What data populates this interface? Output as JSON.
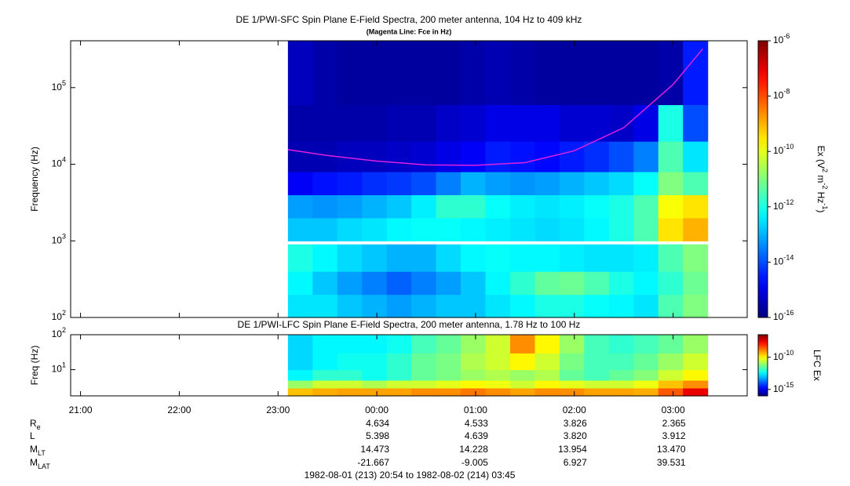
{
  "chart_data": [
    {
      "type": "heatmap",
      "title": "DE 1/PWI-SFC  Spin Plane E-Field Spectra, 200 meter antenna, 104 Hz to 409 kHz",
      "subtitle": "(Magenta Line: Fce in Hz)",
      "ylabel": "Frequency (Hz)",
      "log_y": true,
      "xlim": [
        20.9,
        27.75
      ],
      "ylim": [
        100,
        409000
      ],
      "yticks": [
        {
          "value": 100,
          "label": "10^2"
        },
        {
          "value": 1000,
          "label": "10^3"
        },
        {
          "value": 10000,
          "label": "10^4"
        },
        {
          "value": 100000,
          "label": "10^5"
        }
      ],
      "x_edges": [
        23.1,
        23.35,
        23.6,
        23.85,
        24.1,
        24.35,
        24.6,
        24.85,
        25.1,
        25.35,
        25.6,
        25.85,
        26.1,
        26.35,
        26.6,
        26.85,
        27.1,
        27.35
      ],
      "y_edges": [
        100,
        200,
        400,
        900,
        1000,
        2000,
        4000,
        8000,
        20000,
        60000,
        409000
      ],
      "z": [
        [
          3.2e-13,
          3.2e-13,
          1.6e-13,
          1e-13,
          6.3e-14,
          1e-13,
          1.6e-13,
          1.6e-13,
          3.2e-13,
          5e-13,
          1e-12,
          1e-12,
          6.3e-13,
          5e-13,
          3.2e-13,
          3.2e-12,
          1e-11
        ],
        [
          5e-13,
          1.6e-13,
          6.3e-14,
          3.2e-14,
          1.6e-14,
          3.2e-14,
          6.3e-14,
          1.6e-13,
          5e-13,
          1.6e-12,
          5e-12,
          6.3e-12,
          3.2e-12,
          1e-12,
          5e-13,
          1.6e-12,
          6.3e-12
        ],
        [
          1e-12,
          5e-13,
          2.5e-13,
          1.6e-13,
          1e-13,
          1e-13,
          2.5e-13,
          5e-13,
          6.3e-13,
          5e-13,
          5e-13,
          4e-13,
          3.2e-13,
          3.2e-13,
          4e-13,
          3.2e-12,
          1e-11
        ],
        [
          null,
          null,
          null,
          null,
          null,
          null,
          null,
          null,
          null,
          null,
          null,
          null,
          null,
          null,
          null,
          null,
          null
        ],
        [
          1.6e-13,
          1.6e-13,
          2.5e-13,
          3.2e-13,
          5e-13,
          6.3e-13,
          6.3e-13,
          5e-13,
          4e-13,
          3.2e-13,
          2.5e-13,
          3.2e-13,
          5e-13,
          1e-12,
          3.2e-12,
          3.2e-10,
          1e-09
        ],
        [
          6.3e-14,
          5e-14,
          6.3e-14,
          1e-13,
          1.6e-13,
          4e-13,
          1.6e-12,
          1.6e-12,
          6.3e-13,
          4e-13,
          3.2e-13,
          4e-13,
          6.3e-13,
          1e-12,
          3.2e-12,
          1.6e-10,
          3.2e-10
        ],
        [
          1.6e-15,
          2.5e-15,
          3.2e-15,
          5e-15,
          6.3e-15,
          1e-14,
          3.2e-14,
          1e-13,
          6.3e-14,
          5e-14,
          6.3e-14,
          1e-13,
          1.6e-13,
          2.5e-13,
          6.3e-13,
          1e-11,
          3.2e-12
        ],
        [
          3.2e-16,
          3.2e-16,
          4e-16,
          4e-16,
          5e-16,
          6.3e-16,
          1e-15,
          1.6e-15,
          3.2e-15,
          2.5e-15,
          2e-15,
          3.2e-15,
          5e-15,
          1e-14,
          3.2e-14,
          3.2e-12,
          3.2e-13
        ],
        [
          2.5e-16,
          2.5e-16,
          2.5e-16,
          2.5e-16,
          3.2e-16,
          3.2e-16,
          5e-16,
          6.3e-16,
          1e-15,
          1e-15,
          1e-15,
          6.3e-16,
          6.3e-16,
          5e-16,
          1e-15,
          1e-12,
          1e-14
        ],
        [
          4e-16,
          2.5e-16,
          2e-16,
          2e-16,
          2e-16,
          2e-16,
          2e-16,
          2.5e-16,
          3.2e-16,
          2.5e-16,
          2e-16,
          2e-16,
          2e-16,
          2e-16,
          2e-16,
          2.5e-16,
          3.2e-15
        ]
      ],
      "colorbar": {
        "label": "Ex (V^2 m^-2 Hz^-1)",
        "zlim": [
          1e-16,
          1e-06
        ],
        "ticks": [
          {
            "value": 1e-16,
            "label": "10^-16"
          },
          {
            "value": 1e-14,
            "label": "10^-14"
          },
          {
            "value": 1e-12,
            "label": "10^-12"
          },
          {
            "value": 1e-10,
            "label": "10^-10"
          },
          {
            "value": 1e-08,
            "label": "10^-8"
          },
          {
            "value": 1e-06,
            "label": "10^-6"
          }
        ]
      },
      "series": [
        {
          "color": "#e020e0",
          "x": [
            23.1,
            23.5,
            24,
            24.5,
            25,
            25.5,
            26,
            26.5,
            27,
            27.3
          ],
          "values": [
            15500,
            13000,
            11000,
            9800,
            9700,
            10500,
            15000,
            30000,
            110000,
            320000
          ]
        }
      ]
    },
    {
      "type": "heatmap",
      "title": "DE 1/PWI-LFC  Spin Plane E-Field Spectra, 200 meter antenna, 1.78 Hz to 100 Hz",
      "ylabel": "Freq (Hz)",
      "log_y": true,
      "xlim": [
        20.9,
        27.75
      ],
      "xticks": [
        {
          "value": 21,
          "label": "21:00"
        },
        {
          "value": 22,
          "label": "22:00"
        },
        {
          "value": 23,
          "label": "23:00"
        },
        {
          "value": 24,
          "label": "00:00"
        },
        {
          "value": 25,
          "label": "01:00"
        },
        {
          "value": 26,
          "label": "02:00"
        },
        {
          "value": 27,
          "label": "03:00"
        }
      ],
      "ylim": [
        1.78,
        100
      ],
      "yticks": [
        {
          "value": 10,
          "label": "10^1"
        },
        {
          "value": 100,
          "label": "10^2"
        }
      ],
      "x_edges": [
        23.1,
        23.35,
        23.6,
        23.85,
        24.1,
        24.35,
        24.6,
        24.85,
        25.1,
        25.35,
        25.6,
        25.85,
        26.1,
        26.35,
        26.6,
        26.85,
        27.1,
        27.35
      ],
      "y_edges": [
        1.78,
        3,
        5,
        10,
        30,
        100
      ],
      "z": [
        [
          3.2e-10,
          5e-10,
          6.3e-10,
          6.3e-10,
          6.3e-10,
          1e-09,
          1e-09,
          1.6e-09,
          1e-09,
          6.3e-10,
          1e-09,
          1e-09,
          6.3e-10,
          6.3e-10,
          5e-10,
          3.2e-09,
          3.2e-08
        ],
        [
          1e-11,
          3.2e-11,
          3.2e-11,
          1.6e-11,
          3.2e-11,
          3.2e-11,
          5e-11,
          1e-10,
          6.3e-11,
          3.2e-11,
          1e-10,
          5e-11,
          3.2e-11,
          3.2e-11,
          6.3e-11,
          3.2e-10,
          1e-09
        ],
        [
          3.2e-13,
          1e-12,
          1e-12,
          5e-13,
          1e-12,
          3.2e-12,
          5e-12,
          1e-11,
          1.6e-11,
          1e-11,
          1.6e-11,
          3.2e-12,
          1.6e-12,
          3.2e-12,
          6.3e-12,
          3.2e-11,
          1e-10
        ],
        [
          1.6e-13,
          3.2e-13,
          5e-13,
          5e-13,
          1e-12,
          3.2e-12,
          5e-12,
          1.6e-11,
          3.2e-11,
          1e-10,
          3.2e-11,
          5e-12,
          1.6e-12,
          1.6e-12,
          3.2e-12,
          1e-11,
          3.2e-11
        ],
        [
          1.6e-13,
          3.2e-13,
          3.2e-13,
          3.2e-13,
          5e-13,
          1.6e-12,
          3.2e-12,
          1e-11,
          3.2e-11,
          1e-09,
          1e-10,
          1e-11,
          1.6e-12,
          1e-12,
          1.6e-12,
          3.2e-12,
          1e-11
        ]
      ],
      "colorbar": {
        "label": "LFC Ex",
        "zlim": [
          1e-16,
          3.2e-07
        ],
        "ticks": [
          {
            "value": 1e-15,
            "label": "10^-15"
          },
          {
            "value": 1e-10,
            "label": "10^-10"
          }
        ]
      }
    }
  ],
  "ephemeris": [
    {
      "label": "R_e",
      "values": [
        "4.634",
        "4.533",
        "3.826",
        "2.365"
      ]
    },
    {
      "label": "L",
      "values": [
        "5.398",
        "4.639",
        "3.820",
        "3.912"
      ]
    },
    {
      "label": "M_LT",
      "values": [
        "14.473",
        "14.228",
        "13.954",
        "13.470"
      ]
    },
    {
      "label": "M_LAT",
      "values": [
        "-21.667",
        "-9.005",
        "6.927",
        "39.531"
      ]
    }
  ],
  "time_range": "1982-08-01 (213) 20:54 to 1982-08-02 (214) 03:45"
}
